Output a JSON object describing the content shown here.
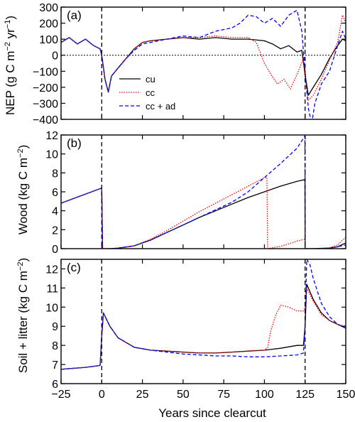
{
  "x_axis": {
    "label": "Years since clearcut",
    "range": [
      -25,
      150
    ],
    "ticks": [
      -25,
      0,
      25,
      50,
      75,
      100,
      125,
      150
    ],
    "tick_labels": [
      "−25",
      "0",
      "25",
      "50",
      "75",
      "100",
      "125",
      "150"
    ]
  },
  "events": {
    "clearcut_years": [
      0,
      125
    ],
    "style": "dashed vertical lines"
  },
  "legend": {
    "entries": [
      {
        "label": "cu",
        "color": "#000000",
        "dash": "solid"
      },
      {
        "label": "cc",
        "color": "#ff0000",
        "dash": "dotted"
      },
      {
        "label": "cc + ad",
        "color": "#0000ff",
        "dash": "dashed"
      }
    ],
    "placement": "panel a, center"
  },
  "colors": {
    "cu": "#000000",
    "cc": "#ff0000",
    "cc_ad": "#0000ff",
    "pre_clearcut": "#3a1fb0"
  },
  "chart_data": [
    {
      "panel": "(a)",
      "type": "line",
      "ylabel_main": "NEP (g C m",
      "ylabel_sup1": "−2",
      "ylabel_mid": " yr",
      "ylabel_sup2": "−1",
      "ylabel_end": ")",
      "ylim": [
        -400,
        300
      ],
      "yticks": [
        -400,
        -300,
        -200,
        -100,
        0,
        100,
        200,
        300
      ],
      "ytick_labels": [
        "−400",
        "−300",
        "−200",
        "−100",
        "0",
        "100",
        "200",
        "300"
      ],
      "zero_line": "dotted",
      "series": [
        {
          "name": "cu",
          "x": [
            -25,
            -20,
            -15,
            -10,
            -5,
            -1,
            0,
            2,
            4,
            6,
            10,
            15,
            20,
            25,
            30,
            40,
            50,
            60,
            70,
            80,
            90,
            100,
            105,
            110,
            115,
            120,
            123,
            125,
            127,
            130,
            135,
            140,
            145,
            148,
            150
          ],
          "y": [
            80,
            110,
            70,
            100,
            60,
            40,
            0,
            -150,
            -230,
            -130,
            -80,
            -20,
            40,
            80,
            90,
            100,
            110,
            100,
            110,
            100,
            100,
            90,
            70,
            40,
            60,
            20,
            30,
            -120,
            -250,
            -200,
            -120,
            -20,
            60,
            100,
            90
          ]
        },
        {
          "name": "cc",
          "x": [
            -25,
            -20,
            -15,
            -10,
            -5,
            -1,
            0,
            2,
            4,
            6,
            10,
            15,
            20,
            25,
            30,
            40,
            50,
            60,
            70,
            80,
            90,
            95,
            100,
            104,
            108,
            112,
            116,
            120,
            124,
            125,
            127,
            130,
            135,
            140,
            145,
            148,
            150
          ],
          "y": [
            80,
            110,
            70,
            100,
            60,
            40,
            0,
            -150,
            -230,
            -130,
            -80,
            -20,
            40,
            80,
            90,
            100,
            110,
            110,
            120,
            110,
            110,
            80,
            -50,
            -120,
            -180,
            -150,
            -210,
            -120,
            -20,
            -150,
            -280,
            -250,
            -150,
            -30,
            80,
            250,
            200
          ]
        },
        {
          "name": "cc + ad",
          "x": [
            -25,
            -20,
            -15,
            -10,
            -5,
            -1,
            0,
            2,
            4,
            6,
            10,
            15,
            20,
            25,
            30,
            40,
            50,
            60,
            70,
            80,
            85,
            90,
            95,
            100,
            105,
            110,
            115,
            120,
            123,
            125,
            127,
            129,
            131,
            135,
            140,
            145,
            148,
            150
          ],
          "y": [
            80,
            110,
            70,
            100,
            60,
            40,
            0,
            -150,
            -230,
            -130,
            -80,
            -20,
            30,
            70,
            80,
            100,
            120,
            110,
            150,
            170,
            200,
            250,
            240,
            200,
            230,
            180,
            250,
            280,
            150,
            -100,
            -330,
            -430,
            -300,
            -180,
            -100,
            60,
            150,
            100
          ]
        }
      ]
    },
    {
      "panel": "(b)",
      "type": "line",
      "ylabel_main": "Wood (kg C m",
      "ylabel_sup1": "−2",
      "ylabel_end": ")",
      "ylim": [
        0,
        12
      ],
      "yticks": [
        0,
        2,
        4,
        6,
        8,
        10,
        12
      ],
      "ytick_labels": [
        "0",
        "2",
        "4",
        "6",
        "8",
        "10",
        "12"
      ],
      "series": [
        {
          "name": "cu",
          "x": [
            -25,
            0,
            0.5,
            5,
            10,
            20,
            30,
            40,
            50,
            60,
            70,
            80,
            90,
            100,
            110,
            120,
            124.9,
            125,
            126,
            130,
            140,
            145,
            150
          ],
          "y": [
            4.8,
            6.4,
            0,
            0,
            0.05,
            0.3,
            0.9,
            1.7,
            2.5,
            3.3,
            4.0,
            4.7,
            5.4,
            6.0,
            6.6,
            7.1,
            7.3,
            0,
            0,
            0,
            0.05,
            0.2,
            0.6
          ]
        },
        {
          "name": "cc",
          "x": [
            -25,
            0,
            0.5,
            5,
            10,
            20,
            30,
            40,
            50,
            60,
            70,
            80,
            90,
            100,
            101.5,
            102,
            105,
            110,
            115,
            120,
            124.9,
            125,
            126,
            130,
            140,
            145,
            150
          ],
          "y": [
            4.8,
            6.4,
            0,
            0,
            0.05,
            0.3,
            1.0,
            1.9,
            2.9,
            3.9,
            4.8,
            5.7,
            6.6,
            7.5,
            7.5,
            0,
            0.1,
            0.25,
            0.5,
            0.8,
            1.0,
            0,
            0,
            0,
            0.1,
            0.4,
            1.2
          ]
        },
        {
          "name": "cc + ad",
          "x": [
            -25,
            0,
            0.5,
            5,
            10,
            20,
            30,
            40,
            50,
            60,
            70,
            80,
            90,
            100,
            110,
            120,
            124.9,
            125,
            126,
            130,
            140,
            145,
            150
          ],
          "y": [
            4.8,
            6.4,
            0,
            0,
            0.05,
            0.3,
            0.9,
            1.7,
            2.5,
            3.3,
            4.1,
            4.9,
            6.0,
            7.5,
            9.0,
            10.6,
            11.9,
            0,
            0,
            0,
            0.05,
            0.2,
            0.4
          ]
        }
      ]
    },
    {
      "panel": "(c)",
      "type": "line",
      "ylabel_main": "Soil + litter (kg C m",
      "ylabel_sup1": "−2",
      "ylabel_end": ")",
      "ylim": [
        6,
        12.5
      ],
      "yticks": [
        6,
        7,
        8,
        9,
        10,
        11,
        12
      ],
      "ytick_labels": [
        "6",
        "7",
        "8",
        "9",
        "10",
        "11",
        "12"
      ],
      "series": [
        {
          "name": "cu",
          "x": [
            -25,
            -10,
            -1,
            0,
            1,
            5,
            10,
            20,
            30,
            40,
            50,
            60,
            70,
            80,
            90,
            100,
            110,
            120,
            124,
            125,
            126,
            130,
            135,
            140,
            145,
            150
          ],
          "y": [
            6.75,
            6.85,
            6.95,
            8.5,
            9.7,
            9.0,
            8.4,
            7.9,
            7.75,
            7.7,
            7.65,
            7.6,
            7.6,
            7.65,
            7.7,
            7.75,
            7.85,
            8.0,
            8.0,
            9.0,
            11.2,
            10.4,
            9.7,
            9.3,
            9.1,
            8.9
          ]
        },
        {
          "name": "cc",
          "x": [
            -25,
            -10,
            -1,
            0,
            1,
            5,
            10,
            20,
            30,
            40,
            50,
            60,
            70,
            80,
            90,
            100,
            102,
            104,
            107,
            110,
            115,
            120,
            124,
            125,
            126,
            130,
            135,
            140,
            145,
            150
          ],
          "y": [
            6.75,
            6.85,
            6.95,
            8.5,
            9.7,
            9.0,
            8.4,
            7.9,
            7.75,
            7.7,
            7.65,
            7.6,
            7.6,
            7.65,
            7.7,
            7.75,
            7.9,
            8.8,
            9.6,
            10.1,
            10.0,
            9.8,
            9.8,
            10.0,
            11.0,
            10.3,
            9.6,
            9.3,
            9.1,
            9.0
          ]
        },
        {
          "name": "cc + ad",
          "x": [
            -25,
            -10,
            -1,
            0,
            1,
            5,
            10,
            20,
            30,
            40,
            50,
            60,
            70,
            80,
            90,
            100,
            110,
            120,
            124,
            125,
            126,
            128,
            130,
            135,
            140,
            145,
            150
          ],
          "y": [
            6.75,
            6.85,
            6.95,
            8.5,
            9.7,
            9.0,
            8.4,
            7.9,
            7.75,
            7.65,
            7.55,
            7.5,
            7.45,
            7.45,
            7.4,
            7.4,
            7.45,
            7.5,
            7.6,
            9.0,
            12.5,
            12.2,
            11.5,
            10.2,
            9.5,
            9.1,
            8.9
          ]
        }
      ]
    }
  ]
}
